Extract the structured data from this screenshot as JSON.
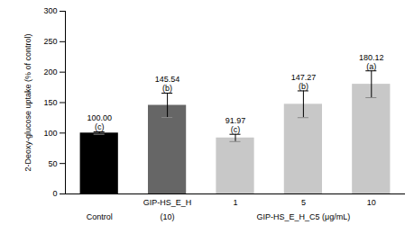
{
  "chart_data": {
    "type": "bar",
    "y_label": "2-Deoxy-glucose uptake (% of control)",
    "categories": [
      null,
      "GIP-HS_E_H",
      "1",
      "5",
      "10"
    ],
    "groups": [
      {
        "name": "Control",
        "size": 1
      },
      {
        "name": "(10)",
        "size": 1
      },
      {
        "name": "GIP-HS_E_H_C5 (μg/mL)",
        "size": 3
      }
    ],
    "values": [
      100,
      145.54,
      91.97,
      147.27,
      180.12
    ],
    "value_labels": [
      "100.00",
      "145.54",
      "91.97",
      "147.27",
      "180.12"
    ],
    "letters": [
      "(c)",
      "(b)",
      "(c)",
      "(b)",
      "(a)"
    ],
    "errors": [
      2,
      20,
      6,
      22,
      22
    ],
    "colors": [
      "#000000",
      "#666666",
      "#c8c8c8",
      "#c8c8c8",
      "#c8c8c8"
    ],
    "ylim": [
      0,
      300
    ],
    "yticks": [
      0,
      50,
      100,
      150,
      200,
      250,
      300
    ],
    "grid": false,
    "data_labels": true
  }
}
